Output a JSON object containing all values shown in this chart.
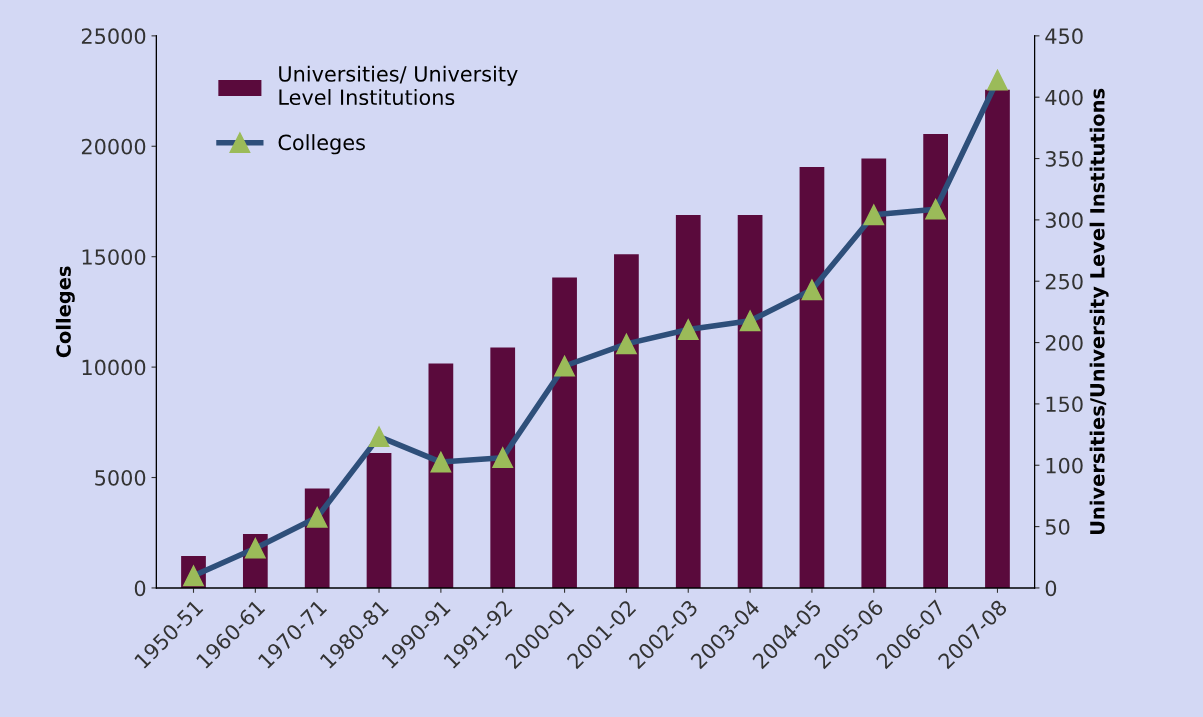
{
  "chart_data": {
    "type": "bar",
    "ylabel": "Colleges",
    "y2label": "Universities/University Level Institutions",
    "categories": [
      "1950-51",
      "1960-61",
      "1970-71",
      "1980-81",
      "1990-91",
      "1991-92",
      "2000-01",
      "2001-02",
      "2002-03",
      "2003-04",
      "2004-05",
      "2005-06",
      "2006-07",
      "2007-08"
    ],
    "series": [
      {
        "name": "Universities/ University\nLevel Institutions",
        "axis": "y2",
        "color": "#5a0a3c",
        "values": [
          26,
          44,
          81,
          110,
          183,
          196,
          253,
          272,
          304,
          304,
          343,
          350,
          370,
          406
        ]
      },
      {
        "name": "Colleges",
        "type": "line",
        "axis": "y",
        "color": "#2e4f7a",
        "marker": "triangle",
        "values": [
          550,
          1800,
          3200,
          6850,
          5700,
          5900,
          10050,
          11050,
          11700,
          12100,
          13500,
          16900,
          17150,
          23000
        ]
      }
    ],
    "ylim": [
      0,
      25000
    ],
    "yticks": [
      0,
      5000,
      10000,
      15000,
      20000,
      25000
    ],
    "y2lim": [
      0,
      450
    ],
    "y2ticks": [
      0,
      50,
      100,
      150,
      200,
      250,
      300,
      350,
      400,
      450
    ],
    "grid": false,
    "legend": "top left"
  }
}
